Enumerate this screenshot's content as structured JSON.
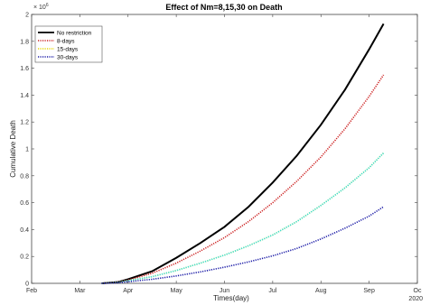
{
  "chart_data": {
    "type": "line",
    "title": "Effect of Nm=8,15,30 on Death",
    "xlabel": "Times(day)",
    "ylabel": "Cumulative Death",
    "y_multiplier_label": "× 10",
    "y_multiplier_exp": "6",
    "year_label": "2020",
    "xlim": [
      0,
      8
    ],
    "ylim": [
      0,
      2
    ],
    "x_ticks": [
      {
        "x": 0,
        "label": "Feb"
      },
      {
        "x": 1,
        "label": "Mar"
      },
      {
        "x": 2,
        "label": "Apr"
      },
      {
        "x": 3,
        "label": "May"
      },
      {
        "x": 4,
        "label": "Jun"
      },
      {
        "x": 5,
        "label": "Jul"
      },
      {
        "x": 6,
        "label": "Aug"
      },
      {
        "x": 7,
        "label": "Sep"
      },
      {
        "x": 8,
        "label": "Oc"
      }
    ],
    "y_ticks": [
      {
        "y": 0,
        "label": "0"
      },
      {
        "y": 0.2,
        "label": "0.2"
      },
      {
        "y": 0.4,
        "label": "0.4"
      },
      {
        "y": 0.6,
        "label": "0.6"
      },
      {
        "y": 0.8,
        "label": "0.8"
      },
      {
        "y": 1.0,
        "label": "1"
      },
      {
        "y": 1.2,
        "label": "1.2"
      },
      {
        "y": 1.4,
        "label": "1.4"
      },
      {
        "y": 1.6,
        "label": "1.6"
      },
      {
        "y": 1.8,
        "label": "1.8"
      },
      {
        "y": 2.0,
        "label": "2"
      }
    ],
    "grid": false,
    "legend": "top-left",
    "series": [
      {
        "name": "No restriction",
        "color": "#000000",
        "style": "solid",
        "x": [
          1.45,
          1.8,
          2.0,
          2.5,
          3.0,
          3.5,
          4.0,
          4.5,
          5.0,
          5.5,
          6.0,
          6.5,
          7.0,
          7.3
        ],
        "y": [
          0.0,
          0.01,
          0.03,
          0.09,
          0.19,
          0.3,
          0.42,
          0.57,
          0.75,
          0.95,
          1.18,
          1.44,
          1.74,
          1.93
        ]
      },
      {
        "name": "8-days",
        "color": "#cc2222",
        "style": "dotted",
        "x": [
          1.45,
          1.8,
          2.0,
          2.5,
          3.0,
          3.5,
          4.0,
          4.5,
          5.0,
          5.5,
          6.0,
          6.5,
          7.0,
          7.3
        ],
        "y": [
          0.0,
          0.01,
          0.025,
          0.075,
          0.15,
          0.24,
          0.34,
          0.46,
          0.6,
          0.76,
          0.94,
          1.15,
          1.39,
          1.55
        ]
      },
      {
        "name": "15-days",
        "color": "#e8d800",
        "style": "dotted",
        "x": [
          1.45,
          1.8,
          2.0,
          2.5,
          3.0,
          3.5,
          4.0,
          4.5,
          5.0,
          5.5,
          6.0,
          6.5,
          7.0,
          7.3
        ],
        "y": [
          0.0,
          0.008,
          0.02,
          0.05,
          0.095,
          0.15,
          0.21,
          0.28,
          0.36,
          0.46,
          0.58,
          0.71,
          0.86,
          0.97
        ]
      },
      {
        "name": "",
        "color": "#33dddd",
        "style": "dotted",
        "x": [
          1.45,
          1.8,
          2.0,
          2.5,
          3.0,
          3.5,
          4.0,
          4.5,
          5.0,
          5.5,
          6.0,
          6.5,
          7.0,
          7.3
        ],
        "y": [
          0.0,
          0.008,
          0.02,
          0.05,
          0.095,
          0.15,
          0.21,
          0.28,
          0.36,
          0.46,
          0.58,
          0.71,
          0.86,
          0.97
        ]
      },
      {
        "name": "30-days",
        "color": "#1a1aa6",
        "style": "dotted",
        "x": [
          1.45,
          1.8,
          2.0,
          2.5,
          3.0,
          3.5,
          4.0,
          4.5,
          5.0,
          5.5,
          6.0,
          6.5,
          7.0,
          7.3
        ],
        "y": [
          0.0,
          0.005,
          0.012,
          0.03,
          0.055,
          0.085,
          0.12,
          0.16,
          0.205,
          0.26,
          0.33,
          0.41,
          0.5,
          0.57
        ]
      }
    ]
  }
}
